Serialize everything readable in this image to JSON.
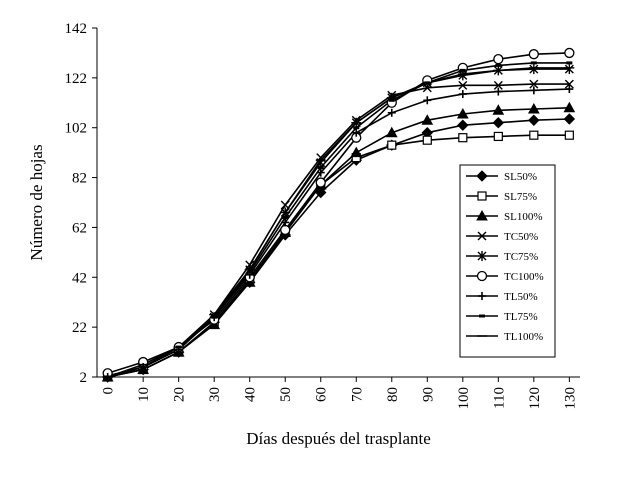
{
  "chart_data": {
    "type": "line",
    "xlabel": "Días después del trasplante",
    "ylabel": "Número de hojas",
    "x": [
      0,
      10,
      20,
      30,
      40,
      50,
      60,
      70,
      80,
      90,
      100,
      110,
      120,
      130
    ],
    "x_tick_labels": [
      "0",
      "10",
      "20",
      "30",
      "40",
      "50",
      "60",
      "70",
      "80",
      "90",
      "100",
      "110",
      "120",
      "130"
    ],
    "y_ticks": [
      2,
      22,
      42,
      62,
      82,
      102,
      122,
      142
    ],
    "y_tick_labels": [
      "2",
      "22",
      "42",
      "62",
      "82",
      "102",
      "122",
      "142"
    ],
    "xlim": [
      -3,
      133
    ],
    "ylim": [
      2,
      142
    ],
    "grid": false,
    "legend_position": "right",
    "series": [
      {
        "name": "SL50%",
        "marker": "diamond",
        "values": [
          2,
          5,
          12,
          24,
          40,
          59,
          76,
          89,
          95,
          100,
          103,
          104,
          105,
          105.5
        ]
      },
      {
        "name": "SL75%",
        "marker": "square",
        "values": [
          2,
          5,
          12,
          24,
          41,
          60,
          79,
          90,
          95,
          97,
          98,
          98.5,
          99,
          99
        ]
      },
      {
        "name": "SL100%",
        "marker": "triangle",
        "values": [
          2,
          5,
          12,
          23,
          40,
          60,
          79,
          92,
          100,
          105,
          107.5,
          109,
          109.5,
          110
        ]
      },
      {
        "name": "TC50%",
        "marker": "x",
        "values": [
          2.5,
          6,
          13,
          27,
          47,
          71,
          90,
          105,
          115,
          118,
          119,
          119,
          119.5,
          119.5
        ]
      },
      {
        "name": "TC75%",
        "marker": "star",
        "values": [
          2,
          6,
          13,
          26,
          45,
          68,
          88,
          104,
          114,
          120,
          123,
          125,
          125.5,
          125.5
        ]
      },
      {
        "name": "TC100%",
        "marker": "circle",
        "values": [
          3.5,
          8,
          14,
          25,
          42,
          61,
          80,
          98,
          112,
          121,
          126,
          129.5,
          131.5,
          132
        ]
      },
      {
        "name": "TL50%",
        "marker": "plus",
        "values": [
          2,
          6,
          13,
          26,
          43,
          64,
          84,
          100,
          108,
          113,
          115.5,
          116.5,
          117,
          117.5
        ]
      },
      {
        "name": "TL75%",
        "marker": "dash",
        "values": [
          2,
          6,
          14,
          26,
          44,
          66,
          86,
          102,
          113,
          120,
          125,
          127,
          128,
          128
        ]
      },
      {
        "name": "TL100%",
        "marker": "hline",
        "values": [
          2,
          7,
          14,
          27,
          45,
          68,
          89,
          104,
          114,
          120,
          123.5,
          125,
          126,
          126
        ]
      }
    ]
  }
}
